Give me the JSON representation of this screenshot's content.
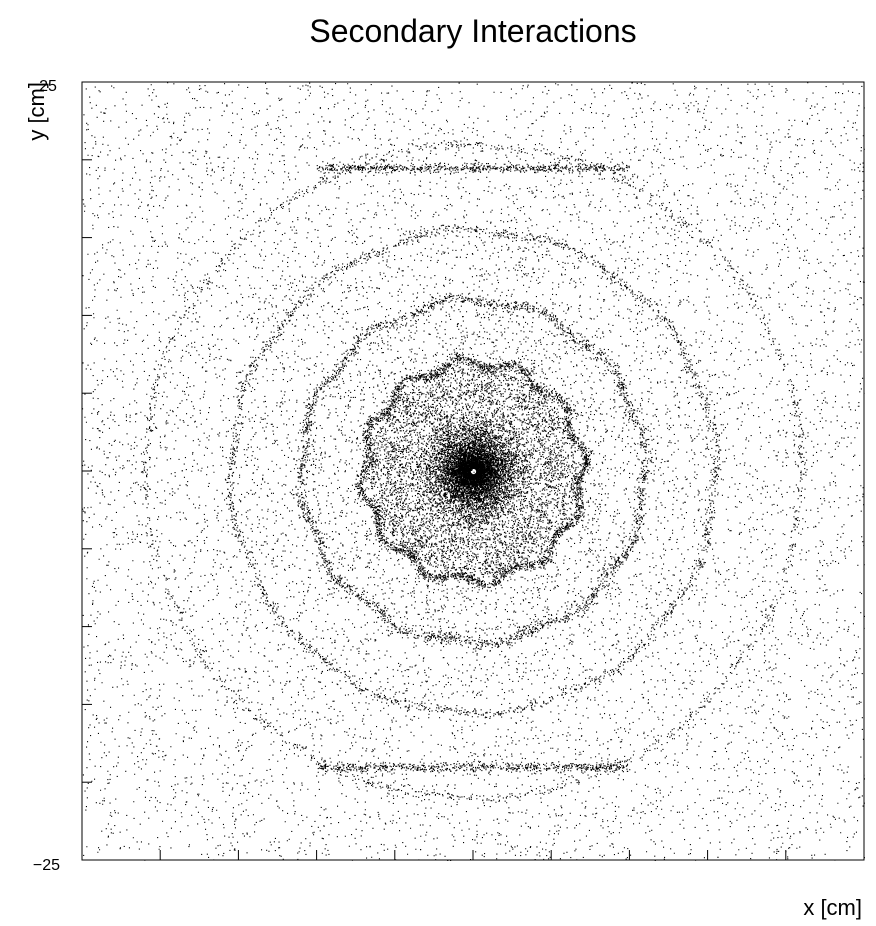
{
  "chart_data": {
    "type": "scatter",
    "title": "Secondary Interactions",
    "xlabel": "x [cm]",
    "ylabel": "y [cm]",
    "xlim": [
      -25,
      25
    ],
    "ylim": [
      -25,
      25
    ],
    "y_tick_labels": [
      {
        "value": 25,
        "label": "25"
      },
      {
        "value": -25,
        "label": "−25"
      }
    ],
    "x_tick_labels": [],
    "grid": false,
    "legend": "none",
    "marker_color": "#000000",
    "series": [
      {
        "structure": "dense core with concentric detector rings",
        "core": {
          "center": [
            0,
            0
          ],
          "radius": 3.5,
          "hole_radius": 0.2
        },
        "rings": [
          {
            "radius": 7.0,
            "width": 0.35,
            "wave_amplitude": 0.3
          },
          {
            "radius": 11.0,
            "width": 0.35,
            "wave_amplitude": 0.2
          },
          {
            "radius": 15.5,
            "width": 0.3,
            "wave_amplitude": 0.15
          },
          {
            "radius": 21.0,
            "width": 0.3,
            "wave_amplitude": 0.1
          }
        ],
        "horizontal_bands": [
          {
            "y": 19.5,
            "x_range": [
              -10,
              10
            ]
          },
          {
            "y": -19.0,
            "x_range": [
              -10,
              10
            ]
          }
        ],
        "background_density": "uniform low"
      }
    ]
  }
}
